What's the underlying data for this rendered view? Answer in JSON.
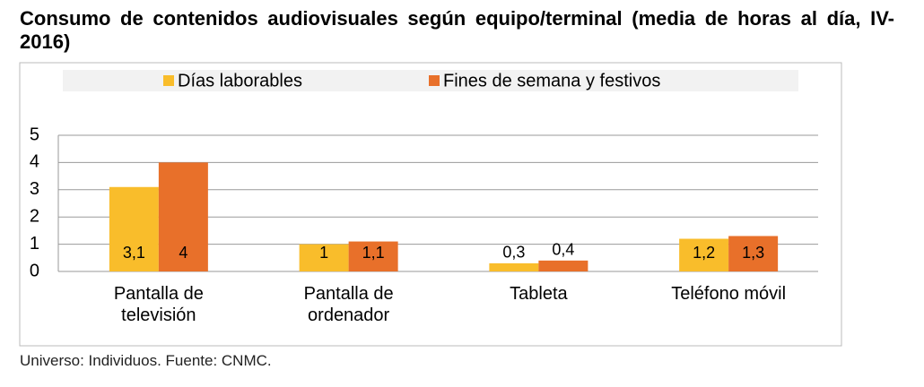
{
  "chart_data": {
    "type": "bar",
    "title": "Consumo de contenidos audiovisuales según equipo/terminal (media de horas al día, IV-2016)",
    "source": "Universo: Individuos. Fuente: CNMC.",
    "categories": [
      "Pantalla de televisión",
      "Pantalla de ordenador",
      "Tableta",
      "Teléfono móvil"
    ],
    "series": [
      {
        "name": "Días laborables",
        "color": "#f9bd2b",
        "values": [
          3.1,
          1,
          0.3,
          1.2
        ],
        "value_labels": [
          "3,1",
          "1",
          "0,3",
          "1,2"
        ]
      },
      {
        "name": "Fines de semana y festivos",
        "color": "#e8702a",
        "values": [
          4,
          1.1,
          0.4,
          1.3
        ],
        "value_labels": [
          "4",
          "1,1",
          "0,4",
          "1,3"
        ]
      }
    ],
    "ylim": [
      0,
      5
    ],
    "yticks": [
      0,
      1,
      2,
      3,
      4,
      5
    ],
    "grid": true,
    "legend": "top"
  }
}
